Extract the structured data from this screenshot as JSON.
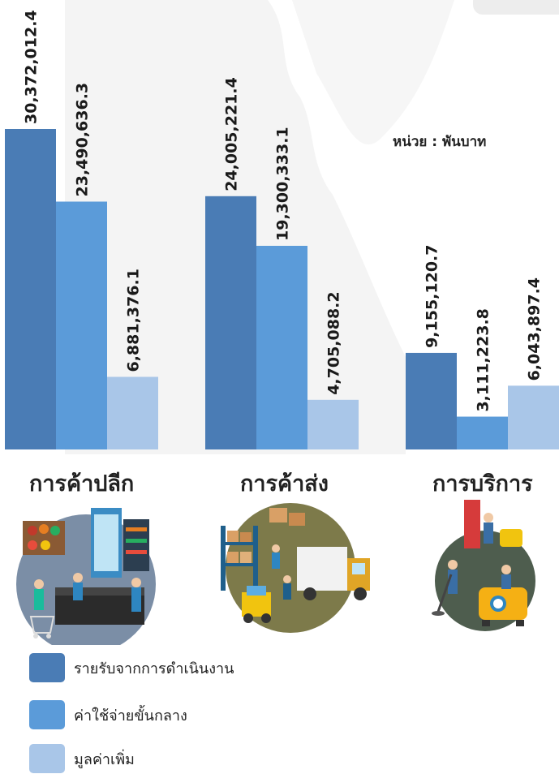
{
  "chart_data": {
    "type": "bar",
    "categories": [
      "การค้าปลีก",
      "การค้าส่ง",
      "การบริการ"
    ],
    "series": [
      {
        "name": "รายรับจากการดำเนินงาน",
        "values": [
          30372012.4,
          24005221.4,
          9155120.7
        ],
        "labels": [
          "30,372,012.4",
          "24,005,221.4",
          "9,155,120.7"
        ],
        "color": "#4a7cb5"
      },
      {
        "name": "ค่าใช้จ่ายขั้นกลาง",
        "values": [
          23490636.3,
          19300333.1,
          3111223.8
        ],
        "labels": [
          "23,490,636.3",
          "19,300,333.1",
          "3,111,223.8"
        ],
        "color": "#5b9bd9"
      },
      {
        "name": "มูลค่าเพิ่ม",
        "values": [
          6881376.1,
          4705088.2,
          6043897.4
        ],
        "labels": [
          "6,881,376.1",
          "4,705,088.2",
          "6,043,897.4"
        ],
        "color": "#a9c6e8"
      }
    ],
    "unit_label": "หน่วย : พันบาท",
    "ylim": [
      0,
      30372012.4
    ],
    "grid": false,
    "legend": "bottom-left"
  },
  "illustrations": [
    {
      "icon": "retail-store-illustration-icon"
    },
    {
      "icon": "wholesale-warehouse-illustration-icon"
    },
    {
      "icon": "cleaning-service-illustration-icon"
    }
  ]
}
